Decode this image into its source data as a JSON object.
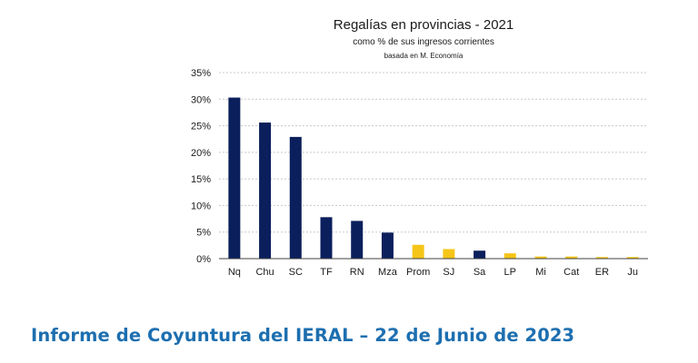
{
  "chart_data": {
    "type": "bar",
    "title": "Regalías en provincias - 2021",
    "subtitle": "como % de sus ingresos corrientes",
    "note": "basada en M. Economía",
    "categories": [
      "Nq",
      "Chu",
      "SC",
      "TF",
      "RN",
      "Mza",
      "Prom",
      "SJ",
      "Sa",
      "LP",
      "Mi",
      "Cat",
      "ER",
      "Ju"
    ],
    "values": [
      30.3,
      25.6,
      22.9,
      7.8,
      7.1,
      4.9,
      2.6,
      1.8,
      1.5,
      1.0,
      0.4,
      0.4,
      0.3,
      0.3
    ],
    "bar_colors": [
      "#0b1f5c",
      "#0b1f5c",
      "#0b1f5c",
      "#0b1f5c",
      "#0b1f5c",
      "#0b1f5c",
      "#f5c518",
      "#f5c518",
      "#0b1f5c",
      "#f5c518",
      "#f5c518",
      "#f5c518",
      "#f5c518",
      "#f5c518"
    ],
    "yticks": [
      "0%",
      "5%",
      "10%",
      "15%",
      "20%",
      "25%",
      "30%",
      "35%"
    ],
    "ylim": [
      0,
      35
    ],
    "xlabel": "",
    "ylabel": "",
    "grid": true
  },
  "footer": {
    "text": "Informe de Coyuntura del IERAL – 22 de Junio de 2023",
    "color": "#1d6fb0"
  }
}
